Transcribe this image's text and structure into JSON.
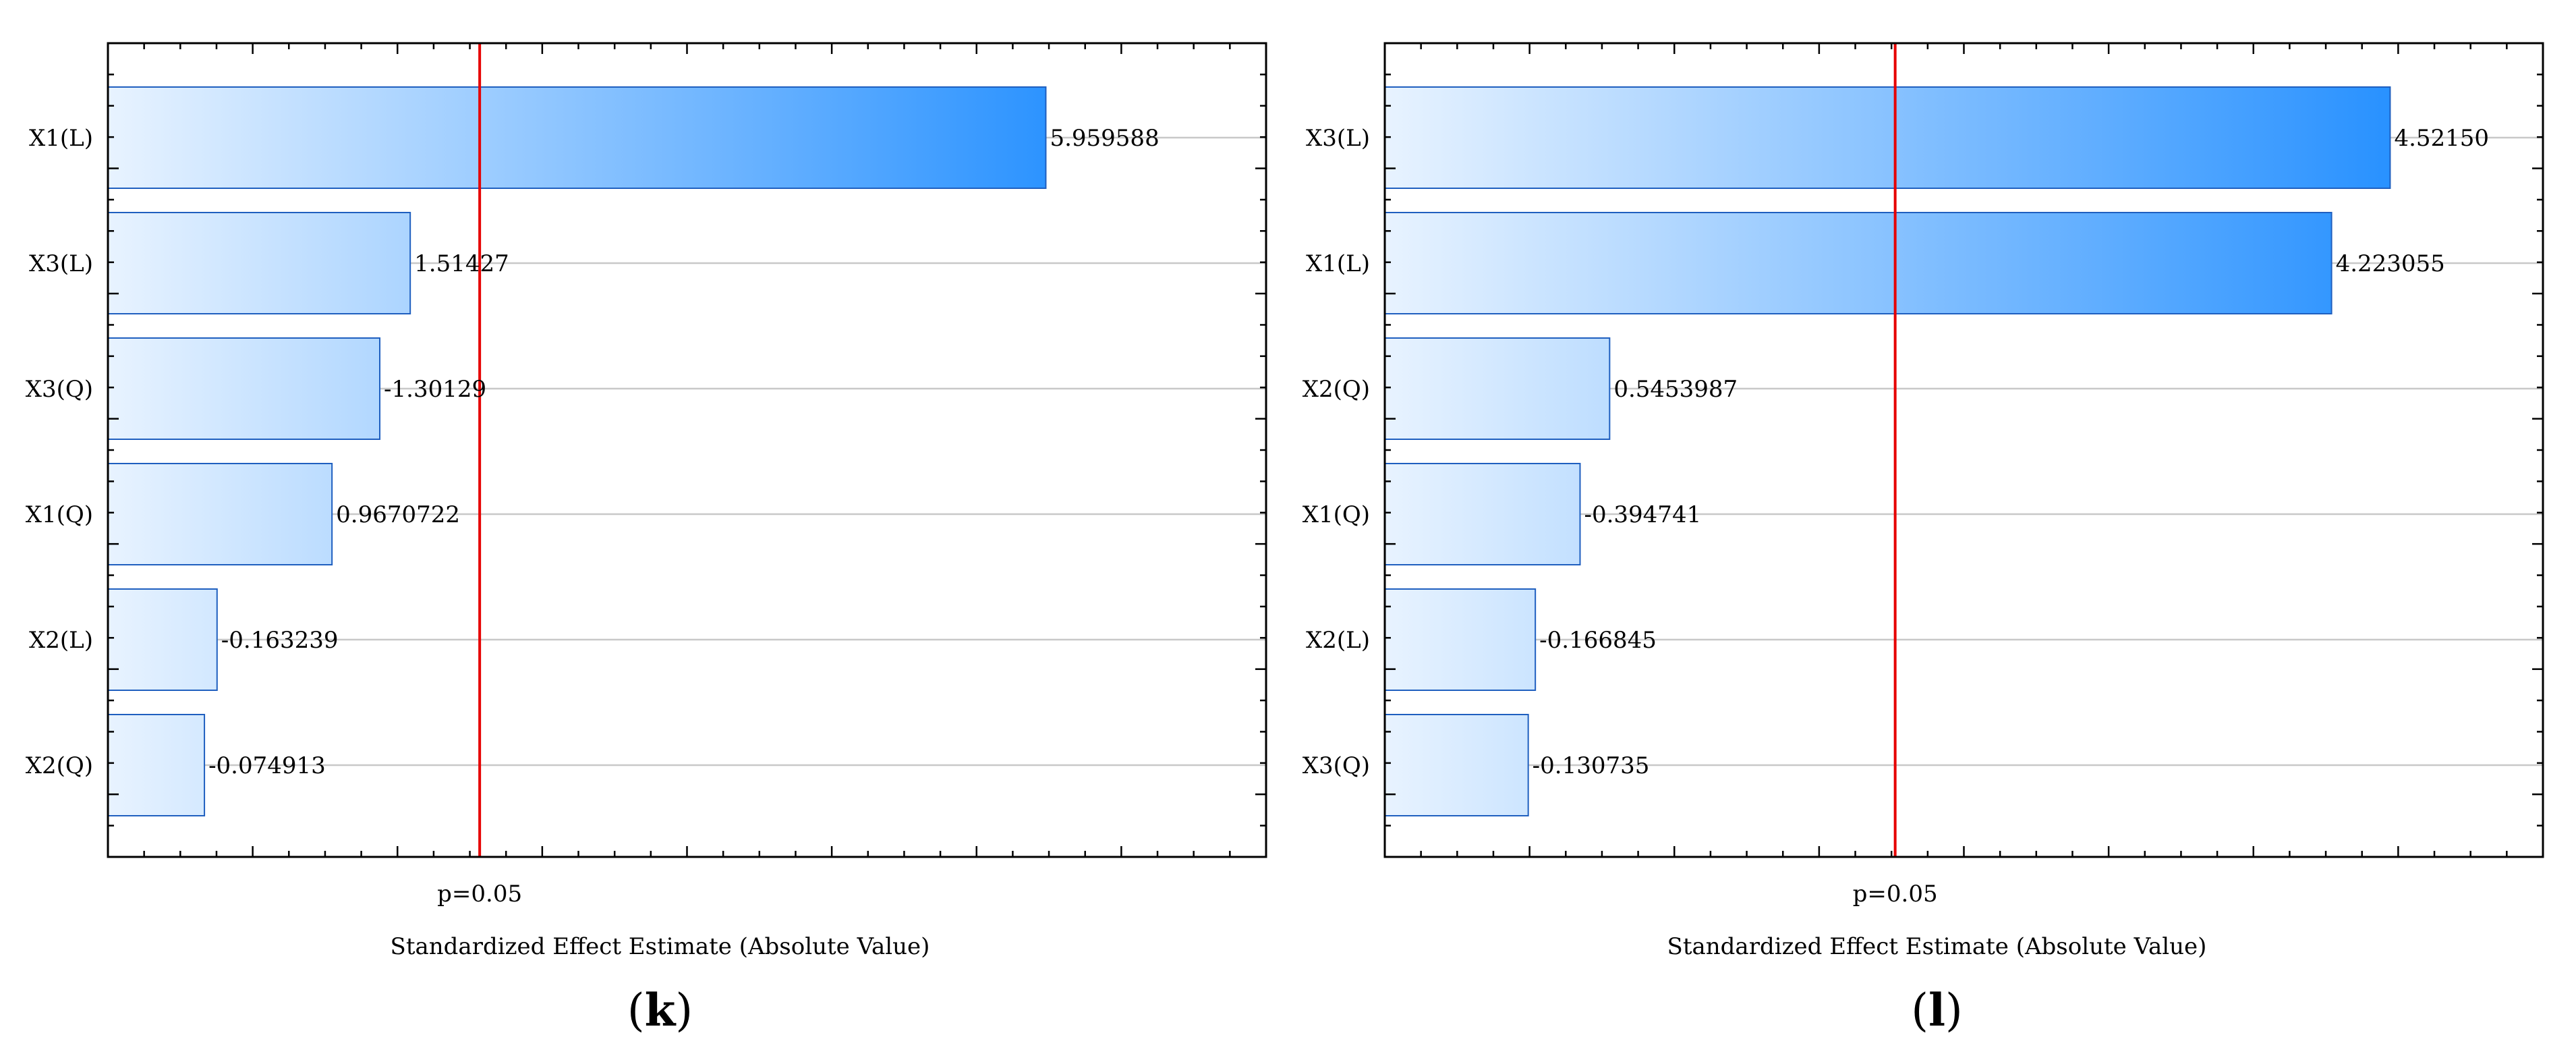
{
  "chart_data": [
    {
      "type": "bar",
      "orientation": "horizontal",
      "panel_label_open": "(",
      "panel_label": "k",
      "panel_label_close": ")",
      "categories": [
        "X1(L)",
        "X3(L)",
        "X3(Q)",
        "X1(Q)",
        "X2(L)",
        "X2(Q)"
      ],
      "values": [
        5.959588,
        1.51427,
        1.30129,
        0.9670722,
        0.163239,
        0.074913
      ],
      "data_labels": [
        "5.959588",
        "1.51427",
        "-1.30129",
        "0.9670722",
        "-0.163239",
        "-0.074913"
      ],
      "reference_value": 2.0,
      "reference_label": "p=0.05",
      "xlabel": "Standardized Effect Estimate (Absolute Value)",
      "xlim": [
        -0.6,
        7.5
      ],
      "grid": "horizontal",
      "colors": {
        "bar_light": "#e8f3ff",
        "bar_dark": "#1e8cff",
        "reference": "#e60000"
      }
    },
    {
      "type": "bar",
      "orientation": "horizontal",
      "panel_label_open": "(",
      "panel_label": "l",
      "panel_label_close": ")",
      "categories": [
        "X3(L)",
        "X1(L)",
        "X2(Q)",
        "X1(Q)",
        "X2(L)",
        "X3(Q)"
      ],
      "values": [
        4.5215,
        4.223055,
        0.5453987,
        0.394741,
        0.166845,
        0.130735
      ],
      "data_labels": [
        "4.52150",
        "4.223055",
        "0.5453987",
        "-0.394741",
        "-0.166845",
        "-0.130735"
      ],
      "reference_value": 2.0,
      "reference_label": "p=0.05",
      "xlabel": "Standardized Effect Estimate (Absolute Value)",
      "xlim": [
        -0.6,
        5.3
      ],
      "grid": "horizontal",
      "colors": {
        "bar_light": "#e8f3ff",
        "bar_dark": "#1e8cff",
        "reference": "#e60000"
      }
    }
  ]
}
